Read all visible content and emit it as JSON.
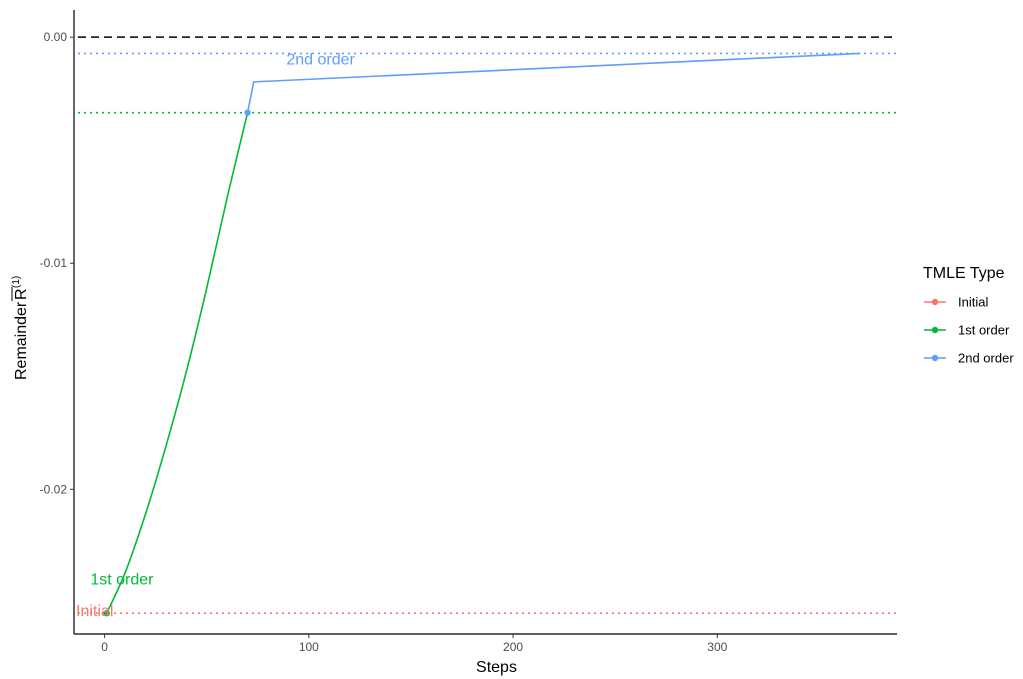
{
  "chart_data": {
    "type": "line",
    "xlabel": "Steps",
    "ylabel_main": "Remainder",
    "ylabel_symbol": "R",
    "ylabel_superscript": "(1)",
    "xlim": [
      -15,
      388
    ],
    "ylim": [
      -0.0264,
      0.0012
    ],
    "x_ticks": [
      0,
      100,
      200,
      300
    ],
    "x_tick_labels": [
      "0",
      "100",
      "200",
      "300"
    ],
    "y_ticks": [
      0.0,
      -0.01,
      -0.02
    ],
    "y_tick_labels": [
      "0.00",
      "-0.01",
      "-0.02"
    ],
    "grid": false,
    "legend": {
      "title": "TMLE Type",
      "placement": "right",
      "entries": [
        {
          "label": "Initial",
          "color": "#F8766D"
        },
        {
          "label": "1st order",
          "color": "#00BA38"
        },
        {
          "label": "2nd order",
          "color": "#619CFF"
        }
      ]
    },
    "reference_lines": [
      {
        "name": "zero",
        "y": 0.0,
        "color": "#000000",
        "style": "dashed"
      },
      {
        "name": "Initial",
        "y": -0.02548,
        "color": "#F8766D",
        "style": "dotted"
      },
      {
        "name": "1st order",
        "y": -0.00334,
        "color": "#00BA38",
        "style": "dotted"
      },
      {
        "name": "2nd order",
        "y": -0.00072,
        "color": "#619CFF",
        "style": "dotted"
      }
    ],
    "series": [
      {
        "name": "1st order",
        "color": "#00BA38",
        "points": [
          {
            "x": 1,
            "y": -0.02548
          },
          {
            "x": 10,
            "y": -0.0237
          },
          {
            "x": 20,
            "y": -0.0211
          },
          {
            "x": 30,
            "y": -0.0181
          },
          {
            "x": 40,
            "y": -0.0148
          },
          {
            "x": 50,
            "y": -0.0111
          },
          {
            "x": 60,
            "y": -0.0071
          },
          {
            "x": 70,
            "y": -0.00334
          }
        ],
        "markers": [
          {
            "x": 1,
            "y": -0.02548
          }
        ]
      },
      {
        "name": "2nd order",
        "color": "#619CFF",
        "points": [
          {
            "x": 70,
            "y": -0.00334
          },
          {
            "x": 73,
            "y": -0.00198
          },
          {
            "x": 370,
            "y": -0.00072
          }
        ],
        "markers": [
          {
            "x": 70,
            "y": -0.00334
          }
        ]
      }
    ],
    "annotations": [
      {
        "text": "Initial",
        "color": "#F8766D",
        "x": -14,
        "y": -0.0256,
        "anchor": "start"
      },
      {
        "text": "1st order",
        "color": "#00BA38",
        "x": -7,
        "y": -0.0242,
        "anchor": "start"
      },
      {
        "text": "2nd order",
        "color": "#619CFF",
        "x": 89,
        "y": -0.0012,
        "anchor": "start"
      }
    ]
  }
}
